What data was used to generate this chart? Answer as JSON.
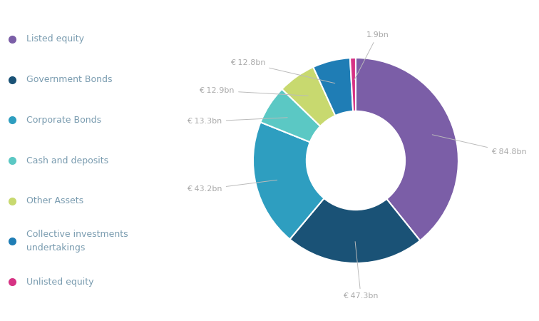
{
  "categories": [
    "Listed equity",
    "Government Bonds",
    "Corporate Bonds",
    "Cash and deposits",
    "Other Assets",
    "Collective investments undertakings",
    "Unlisted equity"
  ],
  "values": [
    84.8,
    47.3,
    43.2,
    13.3,
    12.9,
    12.8,
    1.9
  ],
  "colors": [
    "#7B5EA7",
    "#1A5276",
    "#2E9EC0",
    "#5BC8C4",
    "#C8D96F",
    "#1F7DB5",
    "#D63384"
  ],
  "labels": [
    "€ 84.8bn",
    "€ 47.3bn",
    "€ 43.2bn",
    "€ 13.3bn",
    "€ 12.9bn",
    "€ 12.8bn",
    "1.9bn"
  ],
  "legend_labels": [
    "Listed equity",
    "Government Bonds",
    "Corporate Bonds",
    "Cash and deposits",
    "Other Assets",
    "Collective investments\nundertakings",
    "Unlisted equity"
  ],
  "background_color": "#ffffff",
  "label_color": "#aaaaaa",
  "text_color": "#7a9cb0"
}
